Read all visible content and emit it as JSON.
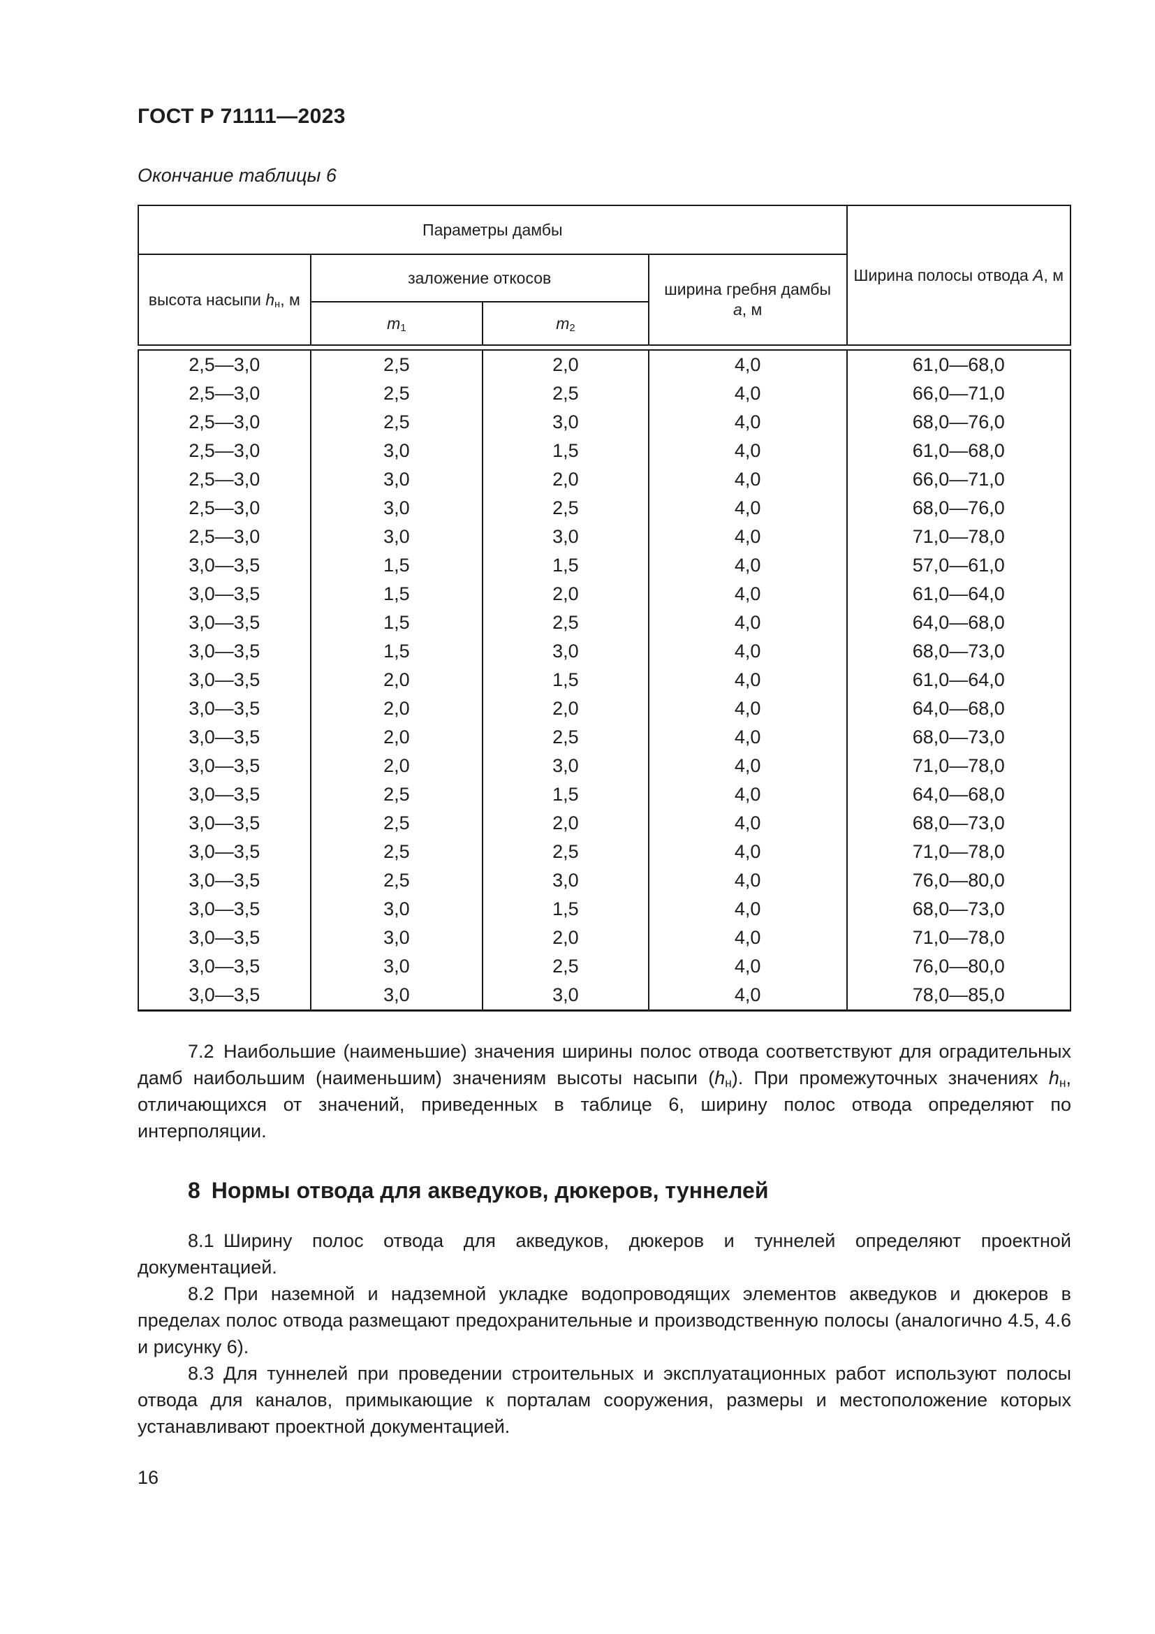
{
  "header": {
    "doc_code": "ГОСТ Р 71111—2023"
  },
  "table": {
    "caption": "Окончание таблицы 6",
    "header": {
      "params_group": "Параметры дамбы",
      "embankment_height": [
        [
          "n",
          "высота насыпи "
        ],
        [
          "i",
          "h"
        ],
        [
          "s",
          "н"
        ],
        [
          "n",
          ", м"
        ]
      ],
      "slopes_group": "заложение откосов",
      "m1": [
        [
          "i",
          "m"
        ],
        [
          "s",
          "1"
        ]
      ],
      "m2": [
        [
          "i",
          "m"
        ],
        [
          "s",
          "2"
        ]
      ],
      "crest_width": [
        [
          "n",
          "ширина гребня дамбы"
        ],
        [
          "br",
          ""
        ],
        [
          "i",
          "а"
        ],
        [
          "n",
          ", м"
        ]
      ],
      "width_band": [
        [
          "n",
          "Ширина полосы отвода "
        ],
        [
          "i",
          "А"
        ],
        [
          "n",
          ", м"
        ]
      ]
    },
    "rows": [
      [
        "2,5—3,0",
        "2,5",
        "2,0",
        "4,0",
        "61,0—68,0"
      ],
      [
        "2,5—3,0",
        "2,5",
        "2,5",
        "4,0",
        "66,0—71,0"
      ],
      [
        "2,5—3,0",
        "2,5",
        "3,0",
        "4,0",
        "68,0—76,0"
      ],
      [
        "2,5—3,0",
        "3,0",
        "1,5",
        "4,0",
        "61,0—68,0"
      ],
      [
        "2,5—3,0",
        "3,0",
        "2,0",
        "4,0",
        "66,0—71,0"
      ],
      [
        "2,5—3,0",
        "3,0",
        "2,5",
        "4,0",
        "68,0—76,0"
      ],
      [
        "2,5—3,0",
        "3,0",
        "3,0",
        "4,0",
        "71,0—78,0"
      ],
      [
        "3,0—3,5",
        "1,5",
        "1,5",
        "4,0",
        "57,0—61,0"
      ],
      [
        "3,0—3,5",
        "1,5",
        "2,0",
        "4,0",
        "61,0—64,0"
      ],
      [
        "3,0—3,5",
        "1,5",
        "2,5",
        "4,0",
        "64,0—68,0"
      ],
      [
        "3,0—3,5",
        "1,5",
        "3,0",
        "4,0",
        "68,0—73,0"
      ],
      [
        "3,0—3,5",
        "2,0",
        "1,5",
        "4,0",
        "61,0—64,0"
      ],
      [
        "3,0—3,5",
        "2,0",
        "2,0",
        "4,0",
        "64,0—68,0"
      ],
      [
        "3,0—3,5",
        "2,0",
        "2,5",
        "4,0",
        "68,0—73,0"
      ],
      [
        "3,0—3,5",
        "2,0",
        "3,0",
        "4,0",
        "71,0—78,0"
      ],
      [
        "3,0—3,5",
        "2,5",
        "1,5",
        "4,0",
        "64,0—68,0"
      ],
      [
        "3,0—3,5",
        "2,5",
        "2,0",
        "4,0",
        "68,0—73,0"
      ],
      [
        "3,0—3,5",
        "2,5",
        "2,5",
        "4,0",
        "71,0—78,0"
      ],
      [
        "3,0—3,5",
        "2,5",
        "3,0",
        "4,0",
        "76,0—80,0"
      ],
      [
        "3,0—3,5",
        "3,0",
        "1,5",
        "4,0",
        "68,0—73,0"
      ],
      [
        "3,0—3,5",
        "3,0",
        "2,0",
        "4,0",
        "71,0—78,0"
      ],
      [
        "3,0—3,5",
        "3,0",
        "2,5",
        "4,0",
        "76,0—80,0"
      ],
      [
        "3,0—3,5",
        "3,0",
        "3,0",
        "4,0",
        "78,0—85,0"
      ]
    ]
  },
  "sections": {
    "p72": [
      [
        "n",
        "7.2 Наибольшие (наименьшие) значения ширины полос отвода соответствуют для оградительных дамб наибольшим (наименьшим) значениям высоты насыпи ("
      ],
      [
        "i",
        "h"
      ],
      [
        "s",
        "н"
      ],
      [
        "n",
        "). При промежуточных значениях "
      ],
      [
        "i",
        "h"
      ],
      [
        "s",
        "н"
      ],
      [
        "n",
        ", отличающихся от значений, приведенных в таблице 6, ширину полос отвода определяют по интерполяции."
      ]
    ],
    "h8": "8 Нормы отвода для акведуков, дюкеров, туннелей",
    "p81": "8.1 Ширину полос отвода для акведуков, дюкеров и туннелей определяют проектной документацией.",
    "p82": "8.2 При наземной и надземной укладке водопроводящих элементов акведуков и дюкеров в пределах полос отвода размещают предохранительные и производственную полосы (аналогично 4.5, 4.6 и рисунку 6).",
    "p83": "8.3 Для туннелей при проведении строительных и эксплуатационных работ используют полосы отвода для каналов, примыкающие к порталам сооружения, размеры и местоположение которых устанавливают проектной документацией."
  },
  "footer": {
    "page_number": "16"
  }
}
